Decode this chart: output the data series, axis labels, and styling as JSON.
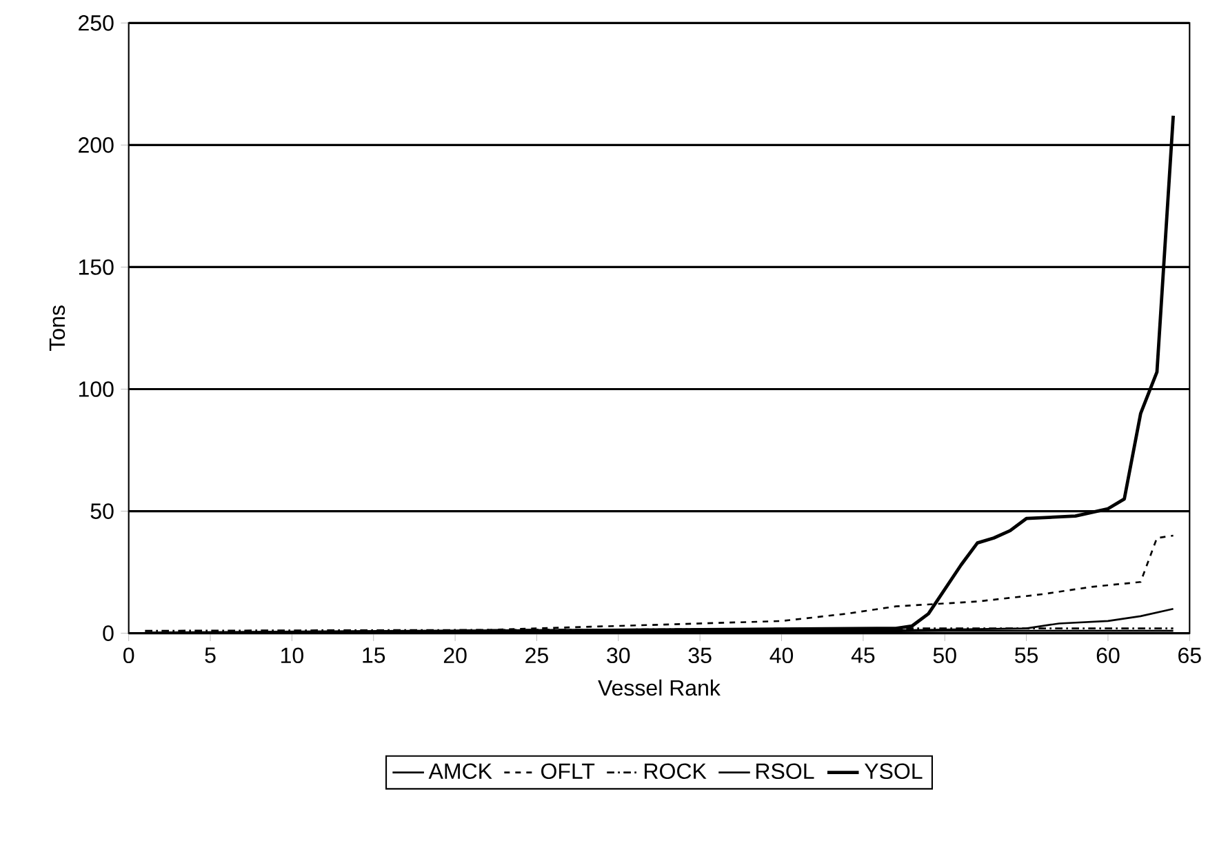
{
  "chart_data": {
    "type": "line",
    "xlabel": "Vessel Rank",
    "ylabel": "Tons",
    "xlim": [
      0,
      65
    ],
    "xticks": [
      0,
      5,
      10,
      15,
      20,
      25,
      30,
      35,
      40,
      45,
      50,
      55,
      60,
      65
    ],
    "ylim": [
      0,
      250
    ],
    "yticks": [
      0,
      50,
      100,
      150,
      200,
      250
    ],
    "grid": "y",
    "legend": "bottom",
    "marker": "none",
    "series": [
      {
        "name": "AMCK",
        "color": "#000000",
        "line_style": "solid",
        "x": [
          1,
          40,
          50,
          64
        ],
        "values": [
          0,
          0.5,
          1,
          1
        ]
      },
      {
        "name": "OFLT",
        "color": "#000000",
        "line_style": "dashed",
        "x": [
          1,
          10,
          20,
          30,
          40,
          44,
          47,
          52,
          56,
          59,
          62,
          63,
          64
        ],
        "values": [
          0,
          0.5,
          1,
          3,
          5,
          8,
          11,
          13,
          16,
          19,
          21,
          39,
          40
        ]
      },
      {
        "name": "ROCK",
        "color": "#000000",
        "line_style": "dashdot",
        "x": [
          1,
          30,
          45,
          64
        ],
        "values": [
          1,
          1.5,
          2,
          2
        ]
      },
      {
        "name": "RSOL",
        "color": "#000000",
        "line_style": "solid",
        "x": [
          1,
          45,
          50,
          55,
          57,
          60,
          62,
          64
        ],
        "values": [
          0,
          1,
          1.5,
          2,
          4,
          5,
          7,
          10
        ]
      },
      {
        "name": "YSOL",
        "color": "#000000",
        "line_style": "solid",
        "x": [
          1,
          47,
          48,
          49,
          50,
          51,
          52,
          53,
          54,
          55,
          58,
          60,
          61,
          62,
          63,
          64
        ],
        "values": [
          0,
          2,
          3,
          8,
          18,
          28,
          37,
          39,
          42,
          47,
          48,
          51,
          55,
          90,
          107,
          212
        ]
      }
    ]
  }
}
